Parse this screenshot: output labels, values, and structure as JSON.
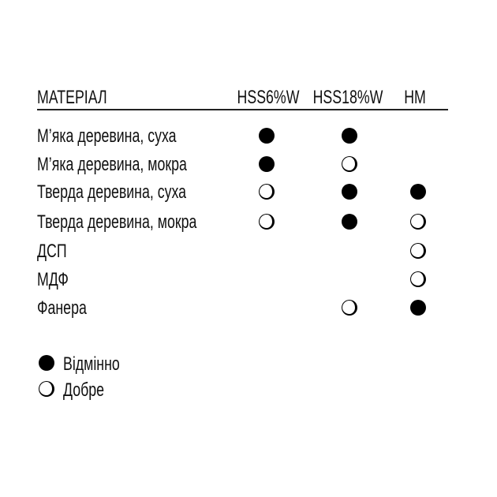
{
  "header": {
    "material": "МАТЕРІАЛ",
    "columns": [
      "HSS6%W",
      "HSS18%W",
      "HM"
    ]
  },
  "rows": [
    {
      "label": "М’яка деревина, суха",
      "ratings": [
        "excellent",
        "excellent",
        ""
      ]
    },
    {
      "label": "М’яка деревина, мокра",
      "ratings": [
        "excellent",
        "good",
        ""
      ]
    },
    {
      "label": "Тверда деревина, суха",
      "ratings": [
        "good",
        "excellent",
        "excellent"
      ]
    },
    {
      "label": "Тверда деревина, мокра",
      "ratings": [
        "good",
        "excellent",
        "good"
      ]
    },
    {
      "label": "ДСП",
      "ratings": [
        "",
        "",
        "good"
      ]
    },
    {
      "label": "МДФ",
      "ratings": [
        "",
        "",
        "good"
      ]
    },
    {
      "label": "Фанера",
      "ratings": [
        "",
        "good",
        "excellent"
      ]
    }
  ],
  "legend": {
    "excellent": "Відмінно",
    "good": "Добре"
  },
  "icons": {
    "excellent": "filled-circle-icon",
    "good": "open-circle-icon"
  }
}
